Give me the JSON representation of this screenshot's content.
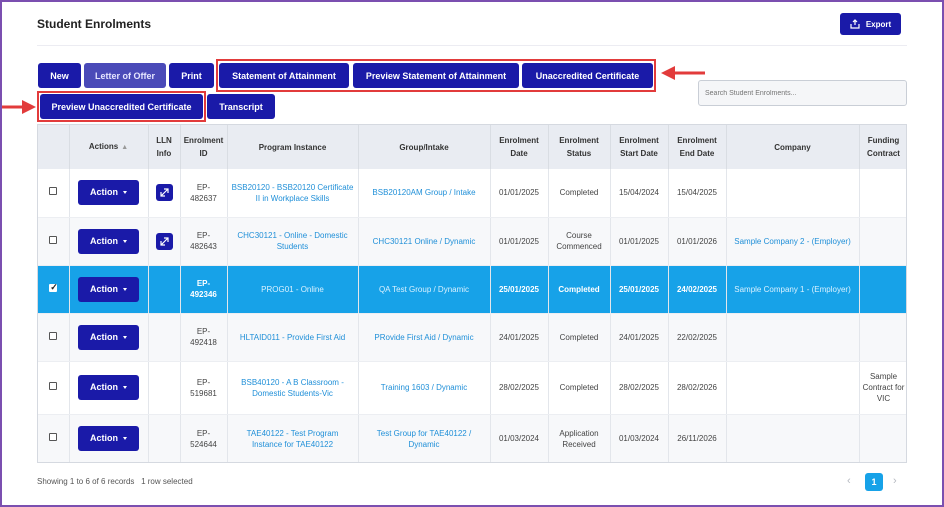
{
  "page": {
    "title": "Student Enrolments",
    "export_label": "Export"
  },
  "toolbar": {
    "new": "New",
    "letter_of_offer": "Letter of Offer",
    "print": "Print",
    "statement_of_attainment": "Statement of Attainment",
    "preview_statement_of_attainment": "Preview Statement of Attainment",
    "unaccredited_certificate": "Unaccredited Certificate",
    "preview_unaccredited_certificate": "Preview Unaccredited Certificate",
    "transcript": "Transcript"
  },
  "search": {
    "placeholder": "Search Student Enrolments..."
  },
  "columns": [
    "",
    "Actions",
    "LLN Info",
    "Enrolment ID",
    "Program Instance",
    "Group/Intake",
    "Enrolment Date",
    "Enrolment Status",
    "Enrolment Start Date",
    "Enrolment End Date",
    "Company",
    "Funding Contract"
  ],
  "action_label": "Action",
  "rows": [
    {
      "selected": false,
      "lln": true,
      "id": "EP-482637",
      "program": "BSB20120 - BSB20120 Certificate II in Workplace Skills",
      "group": "BSB20120AM Group / Intake",
      "date": "01/01/2025",
      "status": "Completed",
      "start": "15/04/2024",
      "end": "15/04/2025",
      "company": "",
      "funding": ""
    },
    {
      "selected": false,
      "lln": true,
      "id": "EP-482643",
      "program": "CHC30121 - Online - Domestic Students",
      "group": "CHC30121 Online / Dynamic",
      "date": "01/01/2025",
      "status": "Course Commenced",
      "start": "01/01/2025",
      "end": "01/01/2026",
      "company": "Sample Company 2 - (Employer)",
      "funding": ""
    },
    {
      "selected": true,
      "lln": false,
      "id": "EP-492346",
      "program": "PROG01 - Online",
      "group": "QA Test Group / Dynamic",
      "date": "25/01/2025",
      "status": "Completed",
      "start": "25/01/2025",
      "end": "24/02/2025",
      "company": "Sample Company 1 - (Employer)",
      "funding": ""
    },
    {
      "selected": false,
      "lln": false,
      "id": "EP-492418",
      "program": "HLTAID011 - Provide First Aid",
      "group": "PRovide First Aid / Dynamic",
      "date": "24/01/2025",
      "status": "Completed",
      "start": "24/01/2025",
      "end": "22/02/2025",
      "company": "",
      "funding": ""
    },
    {
      "selected": false,
      "lln": false,
      "id": "EP-519681",
      "program": "BSB40120 - A B Classroom - Domestic Students-Vic",
      "group": "Training 1603 / Dynamic",
      "date": "28/02/2025",
      "status": "Completed",
      "start": "28/02/2025",
      "end": "28/02/2026",
      "company": "",
      "funding": "Sample Contract for VIC"
    },
    {
      "selected": false,
      "lln": false,
      "id": "EP-524644",
      "program": "TAE40122 - Test Program Instance for TAE40122",
      "group": "Test Group for TAE40122 / Dynamic",
      "date": "01/03/2024",
      "status": "Application Received",
      "start": "01/03/2024",
      "end": "26/11/2026",
      "company": "",
      "funding": ""
    }
  ],
  "footer": {
    "records": "Showing 1 to 6 of 6 records",
    "selected": "1 row selected"
  },
  "pagination": {
    "current": "1",
    "prev": "‹",
    "next": "›"
  },
  "colors": {
    "primary": "#1a1aa8",
    "selected_row": "#17a2e8",
    "highlight": "#e23b3b",
    "link": "#1f8fd8"
  }
}
